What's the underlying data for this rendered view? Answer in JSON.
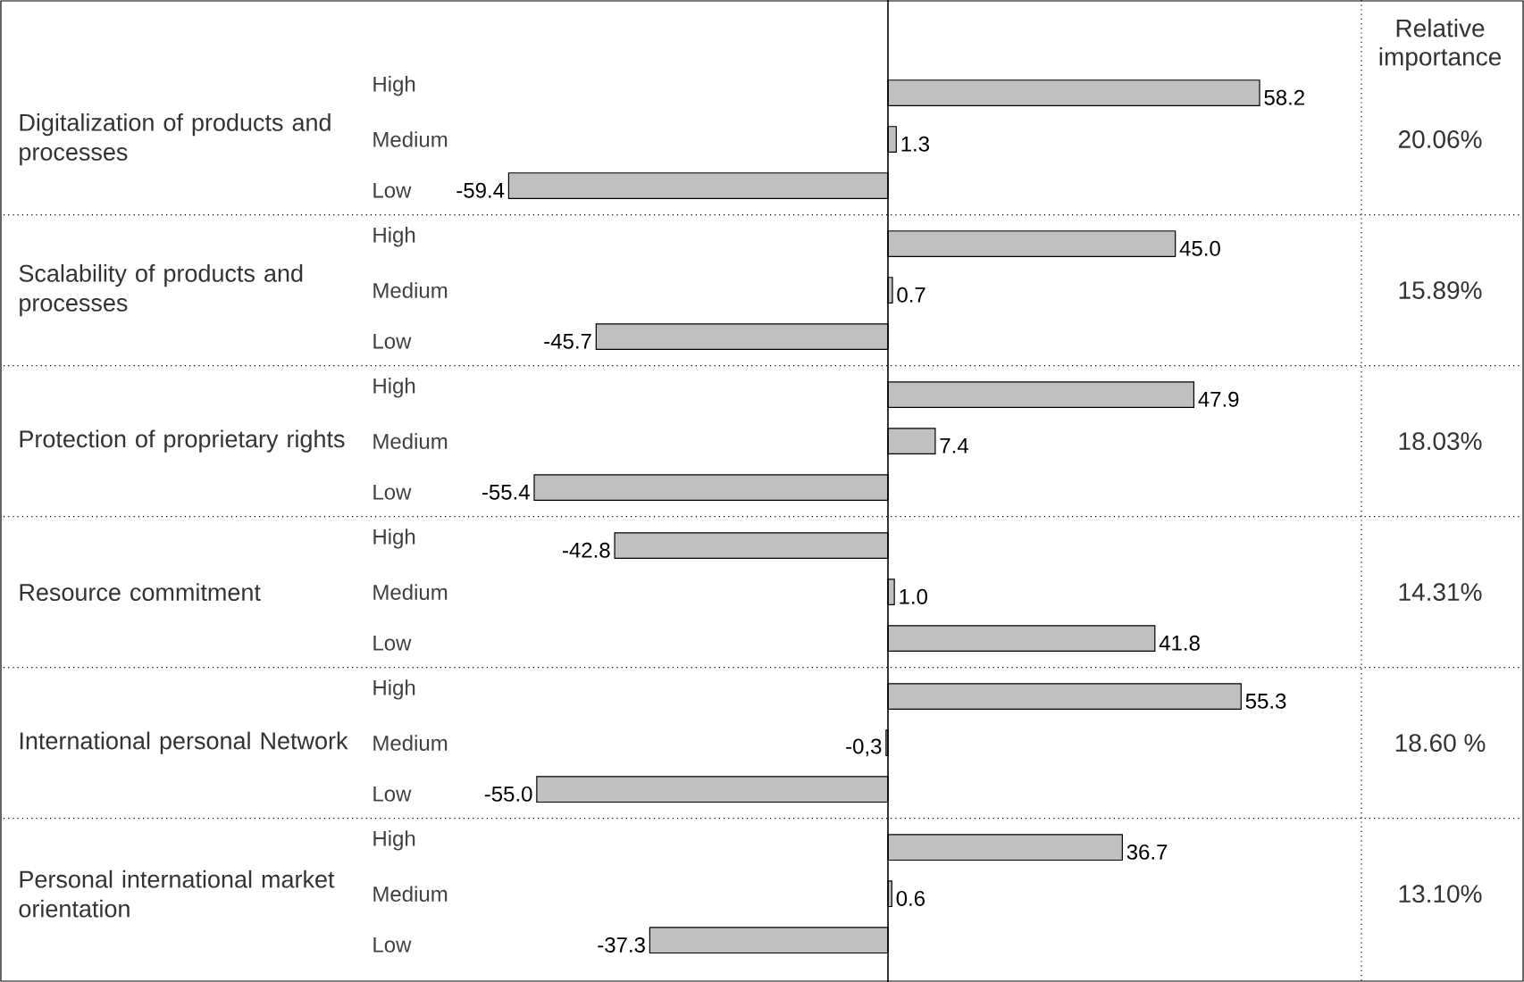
{
  "chart_data": {
    "type": "bar",
    "orientation": "horizontal",
    "color": "#c0c0c0",
    "categories": [
      "High",
      "Medium",
      "Low",
      "High",
      "Medium",
      "Low",
      "High",
      "Medium",
      "Low",
      "High",
      "Medium",
      "Low",
      "High",
      "Medium",
      "Low",
      "High",
      "Medium",
      "Low"
    ],
    "values": [
      58.2,
      1.3,
      -59.4,
      45.0,
      0.7,
      -45.7,
      47.9,
      7.4,
      -55.4,
      -42.8,
      1.0,
      41.8,
      55.3,
      -0.3,
      -55.0,
      36.7,
      0.6,
      -37.3
    ],
    "value_labels": [
      "58.2",
      "1.3",
      "-59.4",
      "45.0",
      "0.7",
      "-45.7",
      "47.9",
      "7.4",
      "-55.4",
      "-42.8",
      "1.0",
      "41.8",
      "55.3",
      "-0,3",
      "-55.0",
      "36.7",
      "0.6",
      "-37.3"
    ],
    "annotations": [
      "Digitalization of products and processes",
      "Scalability of products and processes",
      "Protection of proprietary rights",
      "Resource commitment",
      "International personal Network",
      "Personal international market orientation",
      "Relative importance",
      "20.06%",
      "15.89%",
      "18.03%",
      "14.31%",
      "18.60 %",
      "13.10%"
    ]
  }
}
